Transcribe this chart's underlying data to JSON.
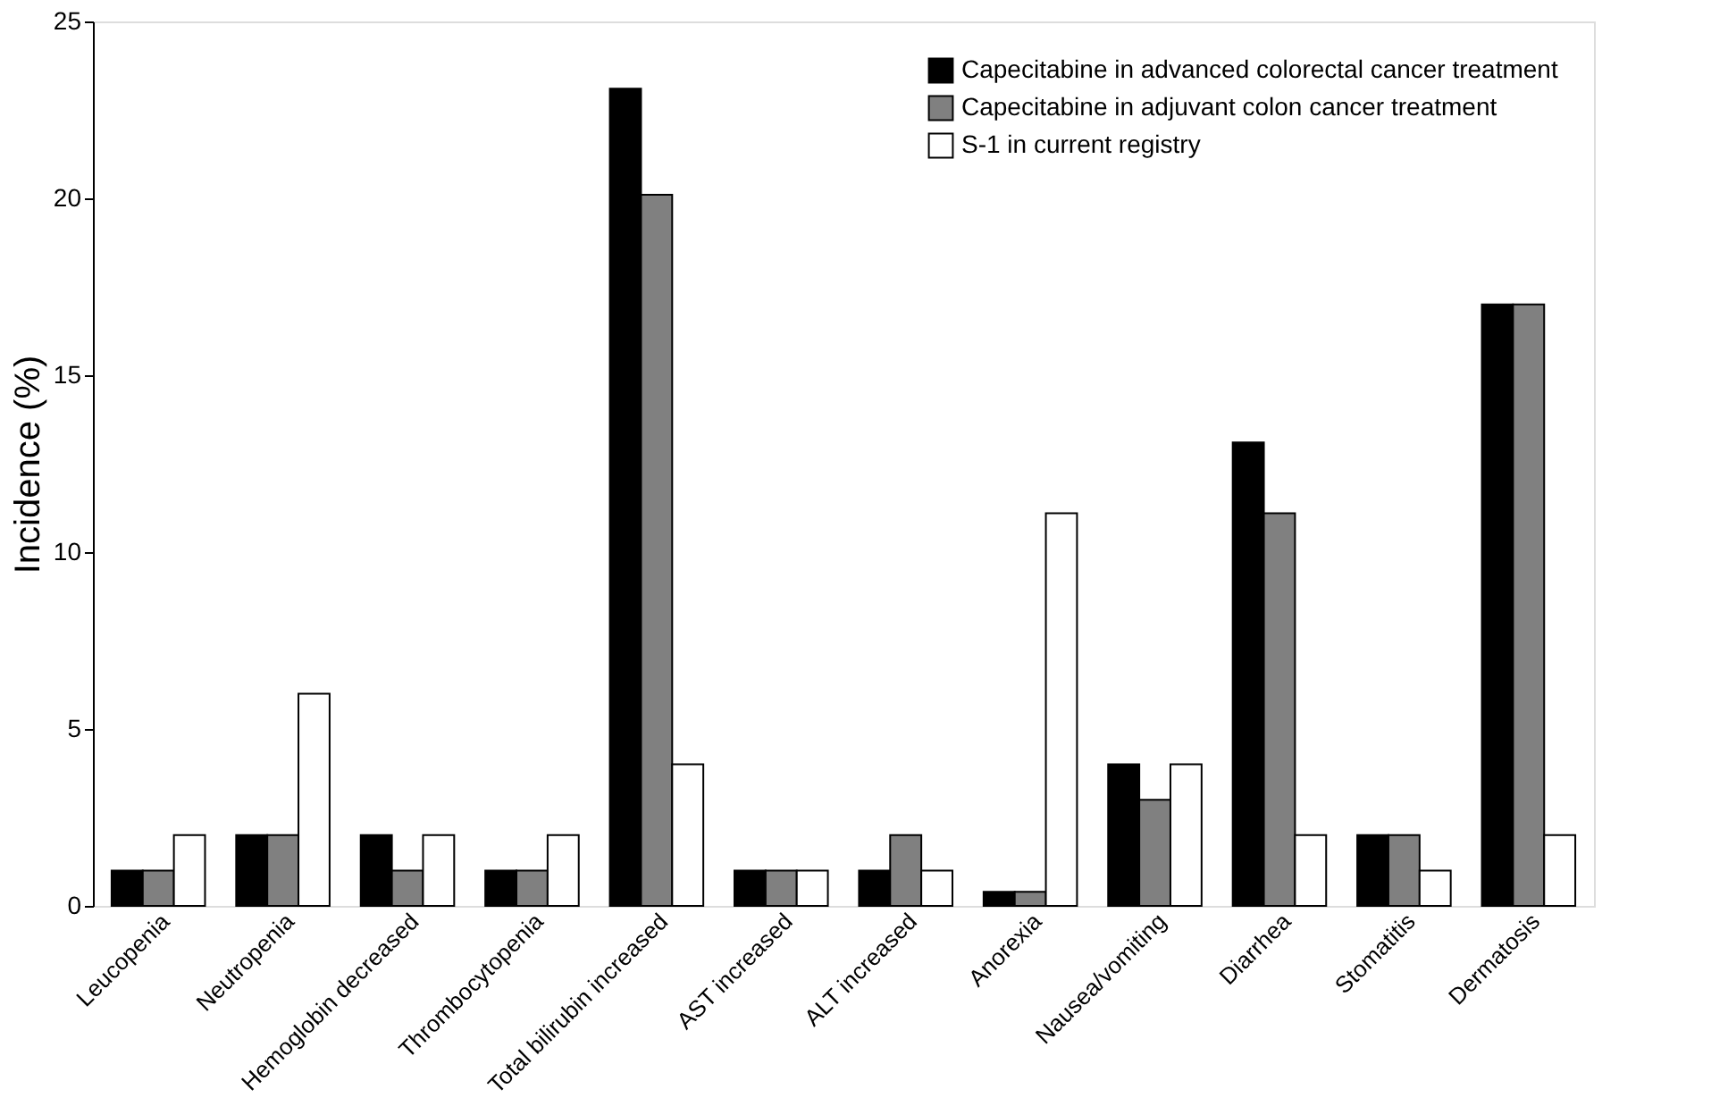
{
  "chart_data": {
    "type": "bar",
    "ylabel": "Incidence (%)",
    "categories": [
      "Leucopenia",
      "Neutropenia",
      "Hemoglobin decreased",
      "Thrombocytopenia",
      "Total bilirubin increased",
      "AST increased",
      "ALT increased",
      "Anorexia",
      "Nausea/vomiting",
      "Diarrhea",
      "Stomatitis",
      "Dermatosis"
    ],
    "series": [
      {
        "name": "Capecitabine in advanced colorectal cancer treatment",
        "color": "#000000",
        "values": [
          1,
          2,
          2,
          1,
          23.1,
          1,
          1,
          0.4,
          4,
          13.1,
          2,
          17
        ]
      },
      {
        "name": "Capecitabine in adjuvant colon cancer treatment",
        "color": "#808080",
        "values": [
          1,
          2,
          1,
          1,
          20.1,
          1,
          2,
          0.4,
          3,
          11.1,
          2,
          17
        ]
      },
      {
        "name": "S-1 in current registry",
        "color": "#ffffff",
        "values": [
          2,
          6,
          2,
          2,
          4,
          1,
          1,
          11.1,
          4,
          2,
          1,
          2
        ]
      }
    ],
    "ylim": [
      0,
      25
    ],
    "yticks": [
      0,
      5,
      10,
      15,
      20,
      25
    ],
    "grid": false,
    "legend": "top right"
  }
}
